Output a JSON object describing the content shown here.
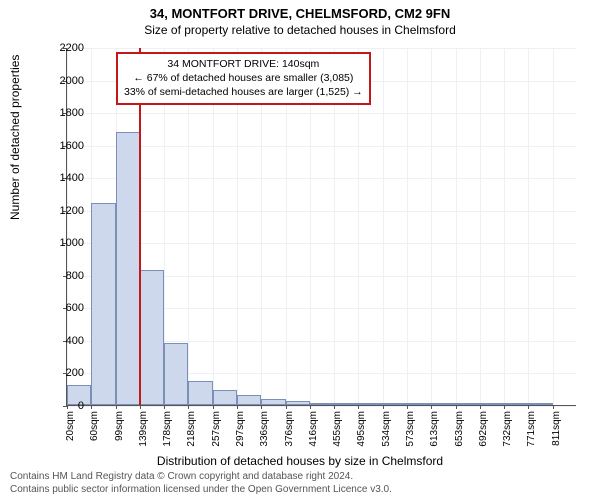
{
  "title": "34, MONTFORT DRIVE, CHELMSFORD, CM2 9FN",
  "subtitle": "Size of property relative to detached houses in Chelmsford",
  "y_axis": {
    "label": "Number of detached properties",
    "min": 0,
    "max": 2200,
    "ticks": [
      0,
      200,
      400,
      600,
      800,
      1000,
      1200,
      1400,
      1600,
      1800,
      2000,
      2200
    ]
  },
  "x_axis": {
    "label": "Distribution of detached houses by size in Chelmsford",
    "ticks": [
      "20sqm",
      "60sqm",
      "99sqm",
      "139sqm",
      "178sqm",
      "218sqm",
      "257sqm",
      "297sqm",
      "336sqm",
      "376sqm",
      "416sqm",
      "455sqm",
      "495sqm",
      "534sqm",
      "573sqm",
      "613sqm",
      "653sqm",
      "692sqm",
      "732sqm",
      "771sqm",
      "811sqm"
    ]
  },
  "bars": [
    120,
    1240,
    1680,
    830,
    380,
    150,
    90,
    60,
    40,
    25,
    15,
    10,
    8,
    5,
    3,
    2,
    2,
    1,
    1,
    1,
    0
  ],
  "bar_color": "#ced8ec",
  "bar_border": "#7b8fb8",
  "grid_color": "#eef0f6",
  "highlight_color": "#c41818",
  "highlight_after_index": 3,
  "annotation": {
    "line1": "34 MONTFORT DRIVE: 140sqm",
    "line2": "← 67% of detached houses are smaller (3,085)",
    "line3": "33% of semi-detached houses are larger (1,525) →"
  },
  "footer": {
    "line1": "Contains HM Land Registry data © Crown copyright and database right 2024.",
    "line2": "Contains public sector information licensed under the Open Government Licence v3.0."
  },
  "background_color": "#ffffff",
  "title_fontsize": 13,
  "subtitle_fontsize": 12,
  "axis_label_fontsize": 12,
  "tick_fontsize": 11,
  "annotation_fontsize": 10.5,
  "footer_fontsize": 10
}
